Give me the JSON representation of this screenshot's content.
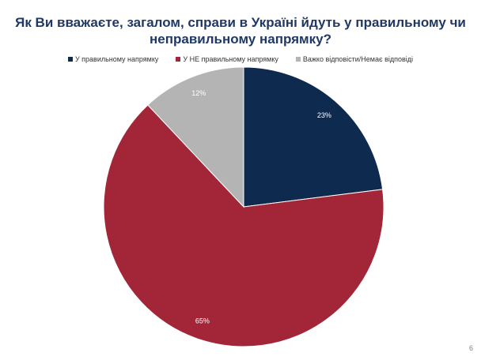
{
  "slide": {
    "title": "Як Ви вважаєте, загалом, справи в Україні йдуть у правильному чи неправильному напрямку?",
    "page_number": "6"
  },
  "chart_data": {
    "type": "pie",
    "title": "Як Ви вважаєте, загалом, справи в Україні йдуть у правильному чи неправильному напрямку?",
    "legend_position": "top",
    "categories": [
      "У правильному напрямку",
      "У НЕ правильному напрямку",
      "Важко відповісти/Немає відповіді"
    ],
    "values": [
      23,
      65,
      12
    ],
    "labels": [
      "23%",
      "65%",
      "12%"
    ],
    "colors": [
      "#0e2a4f",
      "#a32638",
      "#b4b4b4"
    ]
  }
}
